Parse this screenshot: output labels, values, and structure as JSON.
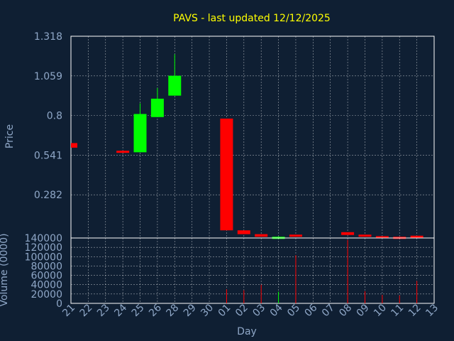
{
  "colors": {
    "background": "#0f1f33",
    "text": "#8fa7c7",
    "title": "#ffff00",
    "up": "#00ff00",
    "down": "#ff0000",
    "grid": "#ffffff"
  },
  "chart_data": {
    "type": "candlestick",
    "title": "PAVS - last updated 12/12/2025",
    "xlabel": "Day",
    "ylabel": "Price",
    "volume_label": "Volume (0000)",
    "grid": true,
    "price_range": [
      0.0,
      1.318
    ],
    "price_ticks": [
      "1.318",
      "1.059",
      "0.8",
      "0.541",
      "0.282"
    ],
    "price_tick_values": [
      1.318,
      1.059,
      0.8,
      0.541,
      0.282
    ],
    "volume_range": [
      0,
      140000
    ],
    "volume_ticks": [
      "140000",
      "120000",
      "100000",
      "80000",
      "60000",
      "40000",
      "20000",
      "0"
    ],
    "volume_tick_values": [
      140000,
      120000,
      100000,
      80000,
      60000,
      40000,
      20000,
      0
    ],
    "days": [
      "21",
      "22",
      "23",
      "24",
      "25",
      "26",
      "28",
      "29",
      "30",
      "01",
      "02",
      "03",
      "04",
      "05",
      "06",
      "07",
      "08",
      "09",
      "10",
      "11",
      "12",
      "13"
    ],
    "candles": [
      {
        "day": "21",
        "open": 0.62,
        "high": 0.62,
        "low": 0.59,
        "close": 0.59,
        "volume": 0
      },
      {
        "day": "24",
        "open": 0.57,
        "high": 0.57,
        "low": 0.565,
        "close": 0.567,
        "volume": 0
      },
      {
        "day": "25",
        "open": 0.56,
        "high": 0.88,
        "low": 0.56,
        "close": 0.81,
        "volume": 0
      },
      {
        "day": "26",
        "open": 0.79,
        "high": 0.98,
        "low": 0.79,
        "close": 0.91,
        "volume": 0
      },
      {
        "day": "28",
        "open": 0.93,
        "high": 1.2,
        "low": 0.93,
        "close": 1.06,
        "volume": 0
      },
      {
        "day": "01",
        "open": 0.78,
        "high": 0.78,
        "low": 0.05,
        "close": 0.05,
        "volume": 30000
      },
      {
        "day": "02",
        "open": 0.05,
        "high": 0.05,
        "low": 0.025,
        "close": 0.025,
        "volume": 28000
      },
      {
        "day": "03",
        "open": 0.025,
        "high": 0.025,
        "low": 0.008,
        "close": 0.008,
        "volume": 40000
      },
      {
        "day": "04",
        "open": 0.004,
        "high": 0.01,
        "low": 0.003,
        "close": 0.008,
        "volume": 25000
      },
      {
        "day": "05",
        "open": 0.022,
        "high": 0.022,
        "low": 0.008,
        "close": 0.008,
        "volume": 103000
      },
      {
        "day": "08",
        "open": 0.038,
        "high": 0.038,
        "low": 0.02,
        "close": 0.02,
        "volume": 136000
      },
      {
        "day": "09",
        "open": 0.022,
        "high": 0.022,
        "low": 0.01,
        "close": 0.01,
        "volume": 26000
      },
      {
        "day": "10",
        "open": 0.012,
        "high": 0.012,
        "low": 0.006,
        "close": 0.006,
        "volume": 18000
      },
      {
        "day": "11",
        "open": 0.008,
        "high": 0.008,
        "low": 0.004,
        "close": 0.004,
        "volume": 17000
      },
      {
        "day": "12",
        "open": 0.015,
        "high": 0.015,
        "low": 0.008,
        "close": 0.008,
        "volume": 48000
      }
    ]
  }
}
